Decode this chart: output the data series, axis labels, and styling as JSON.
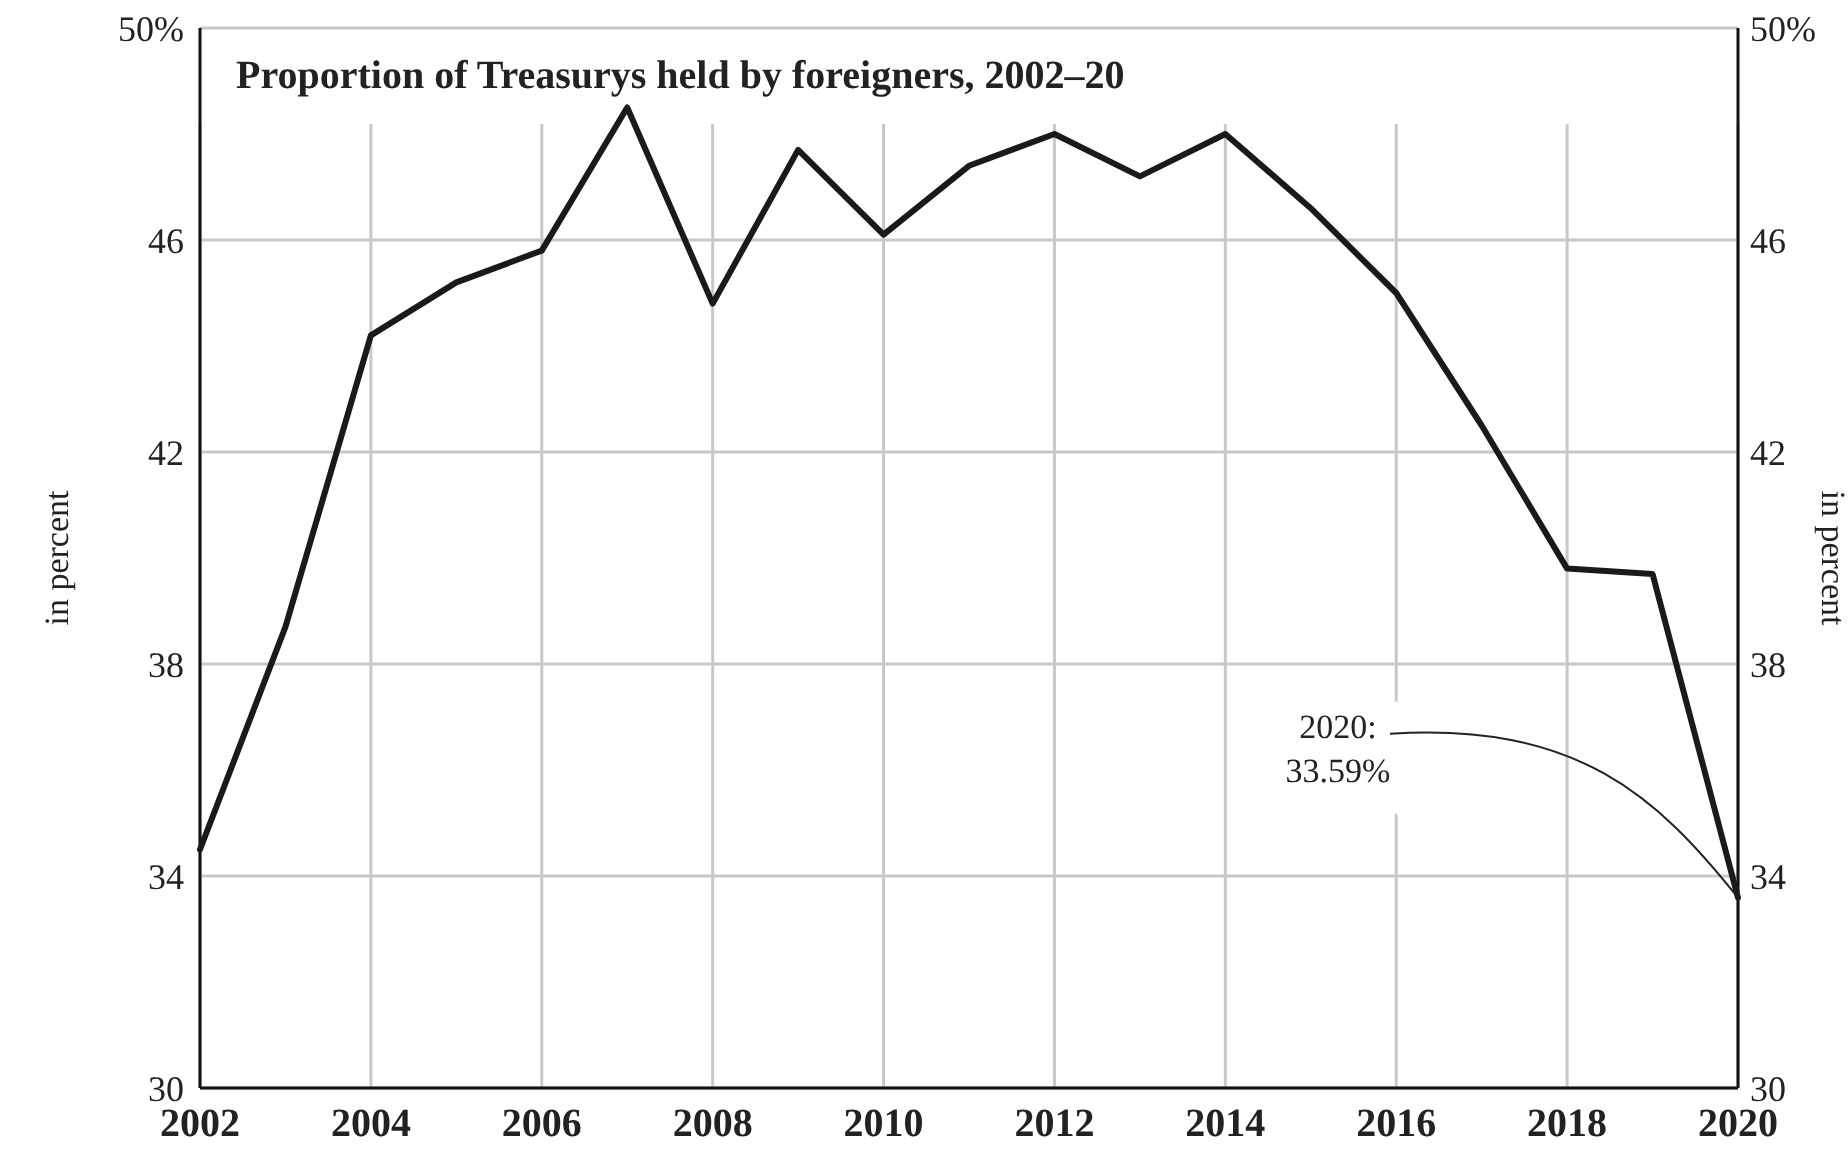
{
  "chart_data": {
    "type": "line",
    "title": "Proportion of Treasurys held by foreigners, 2002–20",
    "ylabel": "in percent",
    "y2label": "in percent",
    "x": [
      2002,
      2003,
      2004,
      2005,
      2006,
      2007,
      2008,
      2009,
      2010,
      2011,
      2012,
      2013,
      2014,
      2015,
      2016,
      2017,
      2018,
      2019,
      2020
    ],
    "series": [
      {
        "color": "#1a1a1a",
        "values": [
          34.5,
          38.7,
          44.2,
          45.2,
          45.8,
          48.5,
          44.8,
          47.7,
          46.1,
          47.4,
          48.0,
          47.2,
          48.0,
          46.6,
          45.0,
          42.5,
          39.8,
          39.7,
          33.59
        ]
      }
    ],
    "xlim": [
      2002,
      2020
    ],
    "xticks": [
      2002,
      2004,
      2006,
      2008,
      2010,
      2012,
      2014,
      2016,
      2018,
      2020
    ],
    "ylim": [
      30,
      50
    ],
    "yticks": [
      30,
      34,
      38,
      42,
      46,
      {
        "value": 50,
        "label": "50%"
      }
    ],
    "y2lim": [
      30,
      50
    ],
    "y2ticks": [
      30,
      34,
      38,
      42,
      46,
      {
        "value": 50,
        "label": "50%"
      }
    ],
    "grid": true,
    "marker": "none",
    "line_style": "solid",
    "annotations": [
      {
        "text": "2020:\n33.59%",
        "x": 2020,
        "y": 33.59
      }
    ]
  }
}
